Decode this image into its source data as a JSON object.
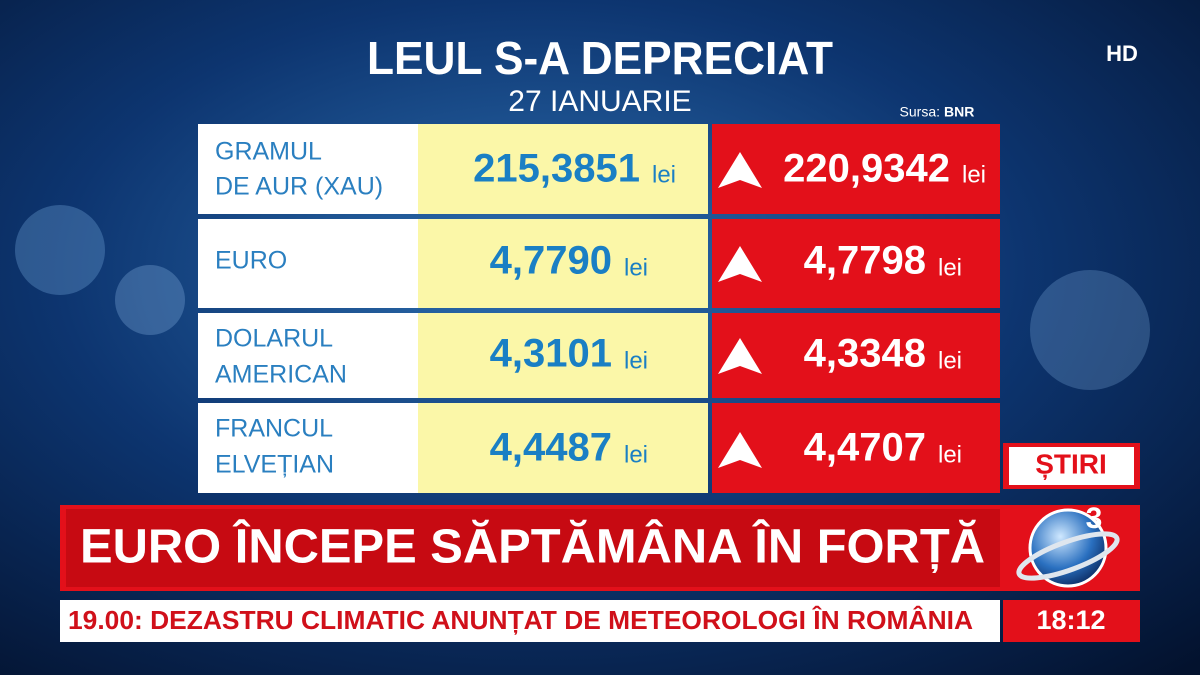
{
  "header": {
    "title": "LEUL S-A DEPRECIAT",
    "date": "27 IANUARIE",
    "source_label": "Sursa:",
    "source": "BNR"
  },
  "badge": "HD",
  "table": {
    "unit": "lei",
    "rows": [
      {
        "name": [
          "GRAMUL",
          "DE AUR (XAU)"
        ],
        "old": "215,3851",
        "new": "220,9342"
      },
      {
        "name": [
          "EURO"
        ],
        "old": "4,7790",
        "new": "4,7798"
      },
      {
        "name": [
          "DOLARUL",
          "AMERICAN"
        ],
        "old": "4,3101",
        "new": "4,3348"
      },
      {
        "name": [
          "FRANCUL",
          "ELVEȚIAN"
        ],
        "old": "4,4487",
        "new": "4,4707"
      }
    ]
  },
  "ticker": {
    "section": "ȘTIRI",
    "headline": "EURO ÎNCEPE SĂPTĂMÂNA ÎN FORȚĂ",
    "crawl": "19.00: DEZASTRU CLIMATIC ANUNȚAT DE METEOROLOGI ÎN ROMÂNIA",
    "time": "18:12",
    "logo": "3"
  }
}
